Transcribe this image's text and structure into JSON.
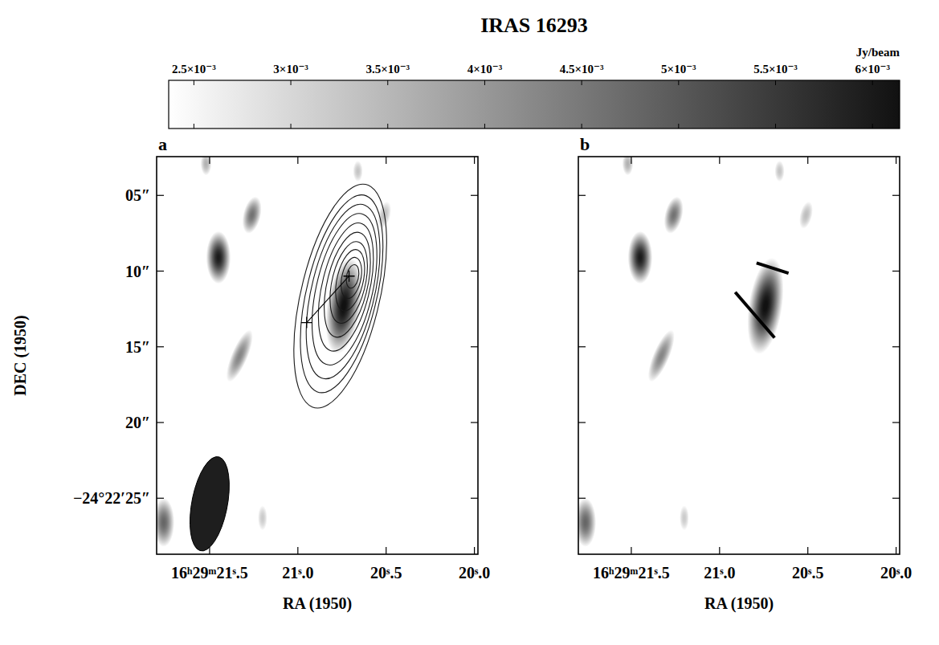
{
  "chart_data": {
    "type": "image",
    "title": "IRAS 16293",
    "xlabel": "RA (1950)",
    "ylabel": "DEC (1950)",
    "xlim": [
      21.8,
      19.98
    ],
    "xticks": [
      {
        "value": 21.5,
        "label": "16ʰ29ᵐ21ˢ.5"
      },
      {
        "value": 21.0,
        "label": "21ˢ.0"
      },
      {
        "value": 20.5,
        "label": "20ˢ.5"
      },
      {
        "value": 20.0,
        "label": "20ˢ.0"
      }
    ],
    "ylim": [
      2.44,
      28.7
    ],
    "yticks": [
      {
        "value": 5,
        "label": "05″"
      },
      {
        "value": 10,
        "label": "10″"
      },
      {
        "value": 15,
        "label": "15″"
      },
      {
        "value": 20,
        "label": "20″"
      },
      {
        "value": 25,
        "label": "−24°22′25″"
      }
    ],
    "colorbar": {
      "label": "Jy/beam",
      "range": [
        0.00237,
        0.00614
      ],
      "ticks": [
        {
          "value": 0.0025,
          "label": "2.5×10⁻³"
        },
        {
          "value": 0.003,
          "label": "3×10⁻³"
        },
        {
          "value": 0.0035,
          "label": "3.5×10⁻³"
        },
        {
          "value": 0.004,
          "label": "4×10⁻³"
        },
        {
          "value": 0.0045,
          "label": "4.5×10⁻³"
        },
        {
          "value": 0.005,
          "label": "5×10⁻³"
        },
        {
          "value": 0.0055,
          "label": "5.5×10⁻³"
        },
        {
          "value": 0.006,
          "label": "6×10⁻³"
        }
      ]
    },
    "sources": [
      {
        "ra": 20.74,
        "dec": 12.3,
        "peak": 0.0062,
        "major": 5.5,
        "minor": 2.4,
        "pa": -12
      },
      {
        "ra": 21.45,
        "dec": 9.1,
        "peak": 0.006,
        "major": 3.0,
        "minor": 1.8,
        "pa": 0
      },
      {
        "ra": 21.26,
        "dec": 6.3,
        "peak": 0.0046,
        "major": 2.6,
        "minor": 1.5,
        "pa": -20
      },
      {
        "ra": 21.52,
        "dec": 2.9,
        "peak": 0.0036,
        "major": 2.0,
        "minor": 1.2,
        "pa": 0
      },
      {
        "ra": 21.33,
        "dec": 15.6,
        "peak": 0.0043,
        "major": 4.2,
        "minor": 1.4,
        "pa": -30
      },
      {
        "ra": 21.76,
        "dec": 26.6,
        "peak": 0.0048,
        "major": 3.2,
        "minor": 1.8,
        "pa": 0
      },
      {
        "ra": 20.51,
        "dec": 6.3,
        "peak": 0.0034,
        "major": 2.6,
        "minor": 1.4,
        "pa": -20
      },
      {
        "ra": 21.2,
        "dec": 26.3,
        "peak": 0.0032,
        "major": 2.5,
        "minor": 1.2,
        "pa": 0
      },
      {
        "ra": 20.66,
        "dec": 3.4,
        "peak": 0.0033,
        "major": 2.0,
        "minor": 1.2,
        "pa": 0
      }
    ],
    "panels": [
      {
        "label": "a",
        "contours": [
          {
            "ra": 20.76,
            "dec": 11.65,
            "major": 15.4,
            "minor": 6.6,
            "pa": -18
          },
          {
            "ra": 20.752,
            "dec": 11.5,
            "major": 13.6,
            "minor": 5.9,
            "pa": -18
          },
          {
            "ra": 20.744,
            "dec": 11.35,
            "major": 12.0,
            "minor": 5.3,
            "pa": -18
          },
          {
            "ra": 20.736,
            "dec": 11.2,
            "major": 10.4,
            "minor": 4.7,
            "pa": -18
          },
          {
            "ra": 20.728,
            "dec": 11.05,
            "major": 8.8,
            "minor": 4.0,
            "pa": -18
          },
          {
            "ra": 20.72,
            "dec": 10.9,
            "major": 7.2,
            "minor": 3.4,
            "pa": -18
          },
          {
            "ra": 20.712,
            "dec": 10.75,
            "major": 5.6,
            "minor": 2.8,
            "pa": -18
          },
          {
            "ra": 20.704,
            "dec": 10.6,
            "major": 4.2,
            "minor": 2.2,
            "pa": -18
          },
          {
            "ra": 20.697,
            "dec": 10.45,
            "major": 2.8,
            "minor": 1.6,
            "pa": -18
          },
          {
            "ra": 20.69,
            "dec": 10.35,
            "major": 1.6,
            "minor": 1.0,
            "pa": -18
          }
        ],
        "crosses": [
          {
            "ra": 20.71,
            "dec": 10.33
          },
          {
            "ra": 20.95,
            "dec": 13.4
          }
        ],
        "beam": {
          "ra": 21.5,
          "dec": 25.37,
          "major": 6.4,
          "minor": 3.0,
          "pa": -15
        }
      },
      {
        "label": "b",
        "tick_labels": "x",
        "vectors": [
          {
            "ra": 20.7,
            "dec": 9.8,
            "length": 2.8,
            "pa": 76
          },
          {
            "ra": 20.8,
            "dec": 12.9,
            "length": 4.5,
            "pa": 48
          }
        ]
      }
    ]
  }
}
